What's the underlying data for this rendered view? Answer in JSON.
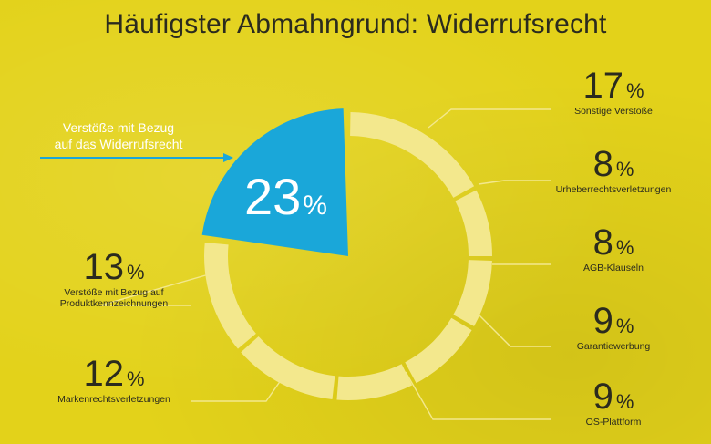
{
  "title": "Häufigster Abmahngrund: Widerrufsrecht",
  "callout": {
    "line1": "Verstöße mit Bezug",
    "line2": "auf das Widerrufsrecht"
  },
  "colors": {
    "background": "#e3d21a",
    "highlight": "#1aa7d9",
    "ring": "#f3e88d",
    "leader": "#f3e88d",
    "text": "#2b2b1e"
  },
  "chart_data": {
    "type": "pie",
    "style": "donut",
    "title": "Häufigster Abmahngrund: Widerrufsrecht",
    "unit": "%",
    "slices": [
      {
        "label": "Verstöße mit Bezug auf das Widerrufsrecht",
        "value": 23,
        "value_label": "23",
        "highlighted": true
      },
      {
        "label": "Sonstige Verstöße",
        "value": 17,
        "value_label": "17"
      },
      {
        "label": "Urheberrechtsverletzungen",
        "value": 8,
        "value_label": "8"
      },
      {
        "label": "AGB-Klauseln",
        "value": 8,
        "value_label": "8"
      },
      {
        "label": "Garantiewerbung",
        "value": 9,
        "value_label": "9"
      },
      {
        "label": "OS-Plattform",
        "value": 9,
        "value_label": "9"
      },
      {
        "label": "Markenrechtsverletzungen",
        "value": 12,
        "value_label": "12"
      },
      {
        "label": "Verstöße mit Bezug auf Produktkennzeichnungen",
        "value": 13,
        "value_label": "13"
      }
    ],
    "side_labels": [
      {
        "value": "17",
        "unit": "%",
        "line1": "Sonstige Verstöße",
        "line2": ""
      },
      {
        "value": "8",
        "unit": "%",
        "line1": "Urheberrechtsverletzungen",
        "line2": ""
      },
      {
        "value": "8",
        "unit": "%",
        "line1": "AGB-Klauseln",
        "line2": ""
      },
      {
        "value": "9",
        "unit": "%",
        "line1": "Garantiewerbung",
        "line2": ""
      },
      {
        "value": "9",
        "unit": "%",
        "line1": "OS-Plattform",
        "line2": ""
      },
      {
        "value": "13",
        "unit": "%",
        "line1": "Verstöße mit Bezug auf",
        "line2": "Produktkennzeichnungen"
      },
      {
        "value": "12",
        "unit": "%",
        "line1": "Markenrechtsverletzungen",
        "line2": ""
      }
    ]
  }
}
